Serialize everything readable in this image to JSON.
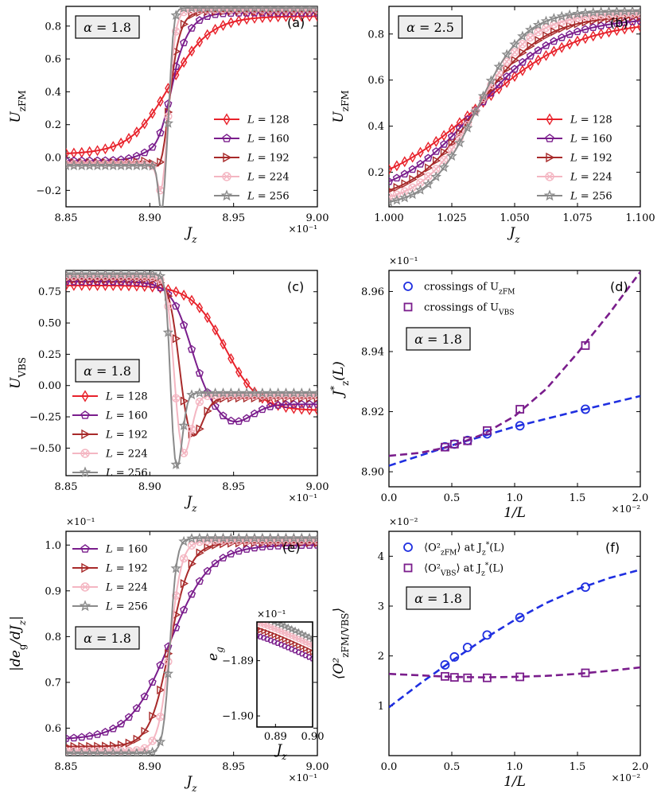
{
  "chart_data": [
    {
      "id": "a",
      "type": "line",
      "panel_label": "(a)",
      "badge": {
        "symbol": "α",
        "value": "1.8"
      },
      "xlabel": "J",
      "xlabel_sub": "z",
      "ylabel": "U",
      "ylabel_sub": "zFM",
      "x_multiplier": "×10⁻¹",
      "xlim": [
        8.85,
        9.0
      ],
      "ylim": [
        -0.3,
        0.92
      ],
      "xticks": [
        8.85,
        8.9,
        8.95,
        9.0
      ],
      "xtick_labels": [
        "8.85",
        "8.90",
        "8.95",
        "9.00"
      ],
      "yticks": [
        -0.2,
        0.0,
        0.2,
        0.4,
        0.6,
        0.8
      ],
      "ytick_labels": [
        "−0.2",
        "0.0",
        "0.2",
        "0.4",
        "0.6",
        "0.8"
      ],
      "legend_position": "right",
      "curve_kind": "step_up",
      "curve_params": {
        "x0": 8.912,
        "low": [
          0.02,
          -0.02,
          -0.03,
          -0.04,
          -0.05
        ],
        "high": [
          0.86,
          0.88,
          0.89,
          0.9,
          0.91
        ],
        "w": [
          0.012,
          0.006,
          0.0035,
          0.002,
          0.0012
        ],
        "dip": [
          0.0,
          0.08,
          0.15,
          0.22,
          0.3
        ],
        "dipx": 8.907
      },
      "series": [
        {
          "name": "L = 128",
          "L": "128",
          "color": "#e8222b",
          "marker": "diamond"
        },
        {
          "name": "L = 160",
          "L": "160",
          "color": "#7a1d8c",
          "marker": "pentagon"
        },
        {
          "name": "L = 192",
          "L": "192",
          "color": "#a82a2a",
          "marker": "triangle-right"
        },
        {
          "name": "L = 224",
          "L": "224",
          "color": "#f4b6c2",
          "marker": "crosscircle"
        },
        {
          "name": "L = 256",
          "L": "256",
          "color": "#8a8a8a",
          "marker": "star"
        }
      ]
    },
    {
      "id": "b",
      "type": "line",
      "panel_label": "(b)",
      "badge": {
        "symbol": "α",
        "value": "2.5"
      },
      "xlabel": "J",
      "xlabel_sub": "z",
      "ylabel": "U",
      "ylabel_sub": "zFM",
      "x_multiplier": "",
      "xlim": [
        1.0,
        1.1
      ],
      "ylim": [
        0.05,
        0.92
      ],
      "xticks": [
        1.0,
        1.025,
        1.05,
        1.075,
        1.1
      ],
      "xtick_labels": [
        "1.000",
        "1.025",
        "1.050",
        "1.075",
        "1.100"
      ],
      "yticks": [
        0.2,
        0.4,
        0.6,
        0.8
      ],
      "ytick_labels": [
        "0.2",
        "0.4",
        "0.6",
        "0.8"
      ],
      "legend_position": "right",
      "curve_kind": "sigmoid",
      "curve_params": {
        "x0": 1.035,
        "low": [
          0.1,
          0.08,
          0.07,
          0.06,
          0.05
        ],
        "high": [
          0.86,
          0.87,
          0.88,
          0.89,
          0.9
        ],
        "w": [
          0.02,
          0.016,
          0.013,
          0.011,
          0.0095
        ]
      },
      "series": [
        {
          "name": "L = 128",
          "L": "128",
          "color": "#e8222b",
          "marker": "diamond"
        },
        {
          "name": "L = 160",
          "L": "160",
          "color": "#7a1d8c",
          "marker": "pentagon"
        },
        {
          "name": "L = 192",
          "L": "192",
          "color": "#a82a2a",
          "marker": "triangle-right"
        },
        {
          "name": "L = 224",
          "L": "224",
          "color": "#f4b6c2",
          "marker": "crosscircle"
        },
        {
          "name": "L = 256",
          "L": "256",
          "color": "#8a8a8a",
          "marker": "star"
        }
      ]
    },
    {
      "id": "c",
      "type": "line",
      "panel_label": "(c)",
      "badge": {
        "symbol": "α",
        "value": "1.8"
      },
      "xlabel": "J",
      "xlabel_sub": "z",
      "ylabel": "U",
      "ylabel_sub": "VBS",
      "x_multiplier": "×10⁻¹",
      "xlim": [
        8.85,
        9.0
      ],
      "ylim": [
        -0.72,
        0.92
      ],
      "xticks": [
        8.85,
        8.9,
        8.95,
        9.0
      ],
      "xtick_labels": [
        "8.85",
        "8.90",
        "8.95",
        "9.00"
      ],
      "yticks": [
        -0.5,
        -0.25,
        0.0,
        0.25,
        0.5,
        0.75
      ],
      "ytick_labels": [
        "−0.50",
        "−0.25",
        "0.00",
        "0.25",
        "0.50",
        "0.75"
      ],
      "legend_position": "lower-left",
      "curve_kind": "step_down",
      "curve_params": {
        "x0": 8.935,
        "high": [
          0.8,
          0.83,
          0.85,
          0.87,
          0.89
        ],
        "low": [
          -0.2,
          -0.15,
          -0.1,
          -0.08,
          -0.06
        ],
        "w": [
          0.01,
          0.006,
          0.003,
          0.002,
          0.0012
        ],
        "x0s": [
          8.945,
          8.924,
          8.917,
          8.914,
          8.912
        ],
        "dip": [
          0.0,
          0.15,
          0.35,
          0.5,
          0.62
        ],
        "dipx": [
          8.96,
          8.95,
          8.925,
          8.92,
          8.916
        ]
      },
      "series": [
        {
          "name": "L = 128",
          "L": "128",
          "color": "#e8222b",
          "marker": "diamond"
        },
        {
          "name": "L = 160",
          "L": "160",
          "color": "#7a1d8c",
          "marker": "pentagon"
        },
        {
          "name": "L = 192",
          "L": "192",
          "color": "#a82a2a",
          "marker": "triangle-right"
        },
        {
          "name": "L = 224",
          "L": "224",
          "color": "#f4b6c2",
          "marker": "crosscircle"
        },
        {
          "name": "L = 256",
          "L": "256",
          "color": "#8a8a8a",
          "marker": "star"
        }
      ]
    },
    {
      "id": "d",
      "type": "scatter",
      "panel_label": "(d)",
      "badge": {
        "symbol": "α",
        "value": "1.8"
      },
      "xlabel": "1/L",
      "ylabel": "J",
      "ylabel_sub": "z",
      "ylabel_post": "(L)",
      "x_multiplier": "×10⁻²",
      "y_multiplier": "×10⁻¹",
      "xlim": [
        0.0,
        2.0
      ],
      "ylim": [
        8.895,
        8.967
      ],
      "xticks": [
        0.0,
        0.5,
        1.0,
        1.5,
        2.0
      ],
      "xtick_labels": [
        "0.0",
        "0.5",
        "1.0",
        "1.5",
        "2.0"
      ],
      "yticks": [
        8.9,
        8.92,
        8.94,
        8.96
      ],
      "ytick_labels": [
        "8.90",
        "8.92",
        "8.94",
        "8.96"
      ],
      "legend_position": "top-left",
      "series": [
        {
          "name": "crossings of U_zFM",
          "legend_text": "crossings of U",
          "legend_sub": "zFM",
          "color": "#1f2fe0",
          "marker": "circle",
          "x": [
            0.446,
            0.521,
            0.625,
            0.781,
            1.042,
            1.563
          ],
          "y": [
            8.9083,
            8.9092,
            8.9104,
            8.9126,
            8.9153,
            8.9208
          ],
          "fit": {
            "x": [
              0.0,
              0.5,
              1.0,
              1.5,
              2.0
            ],
            "y": [
              8.902,
              8.9088,
              8.915,
              8.9202,
              8.9252
            ]
          }
        },
        {
          "name": "crossings of U_VBS",
          "legend_text": "crossings of U",
          "legend_sub": "VBS",
          "color": "#7a1d8c",
          "marker": "square",
          "x": [
            0.446,
            0.521,
            0.625,
            0.781,
            1.042,
            1.563
          ],
          "y": [
            8.9082,
            8.9092,
            8.9103,
            8.9137,
            8.9208,
            8.942
          ],
          "fit": {
            "x": [
              0.0,
              0.25,
              0.5,
              0.75,
              1.0,
              1.25,
              1.5,
              1.75,
              2.0
            ],
            "y": [
              8.9053,
              8.9063,
              8.9085,
              8.9125,
              8.9185,
              8.9275,
              8.9395,
              8.9525,
              8.9665
            ]
          }
        }
      ]
    },
    {
      "id": "e",
      "type": "line",
      "panel_label": "(e)",
      "badge": {
        "symbol": "α",
        "value": "1.8"
      },
      "xlabel": "J",
      "xlabel_sub": "z",
      "ylabel": "|de",
      "ylabel_sub": "g",
      "ylabel_post": "/dJ",
      "x_multiplier": "×10⁻¹",
      "y_multiplier": "×10⁻¹",
      "xlim": [
        8.85,
        9.0
      ],
      "ylim": [
        0.54,
        1.03
      ],
      "xticks": [
        8.85,
        8.9,
        8.95,
        9.0
      ],
      "xtick_labels": [
        "8.85",
        "8.90",
        "8.95",
        "9.00"
      ],
      "yticks": [
        0.6,
        0.7,
        0.8,
        0.9,
        1.0
      ],
      "ytick_labels": [
        "0.6",
        "0.7",
        "0.8",
        "0.9",
        "1.0"
      ],
      "legend_position": "top-left",
      "curve_kind": "step_up",
      "curve_params": {
        "x0": 8.912,
        "low": [
          0.575,
          0.56,
          0.55,
          0.545
        ],
        "high": [
          1.0,
          1.005,
          1.01,
          1.015
        ],
        "w": [
          0.012,
          0.006,
          0.0035,
          0.002
        ],
        "dip": [
          0,
          0,
          0,
          0
        ],
        "dipx": 8.9
      },
      "series": [
        {
          "name": "L = 160",
          "L": "160",
          "color": "#7a1d8c",
          "marker": "pentagon"
        },
        {
          "name": "L = 192",
          "L": "192",
          "color": "#a82a2a",
          "marker": "triangle-right"
        },
        {
          "name": "L = 224",
          "L": "224",
          "color": "#f4b6c2",
          "marker": "crosscircle"
        },
        {
          "name": "L = 256",
          "L": "256",
          "color": "#8a8a8a",
          "marker": "star"
        }
      ],
      "inset": {
        "xlabel": "J",
        "xlabel_sub": "z",
        "ylabel": "e",
        "ylabel_sub": "g",
        "y_multiplier": "×10⁻¹",
        "xlim": [
          0.885,
          0.9
        ],
        "ylim": [
          -1.902,
          -1.883
        ],
        "xticks": [
          0.89,
          0.9
        ],
        "xtick_labels": [
          "0.89",
          "0.90"
        ],
        "yticks": [
          -1.89,
          -1.9
        ],
        "ytick_labels": [
          "−1.89",
          "−1.90"
        ]
      }
    },
    {
      "id": "f",
      "type": "scatter",
      "panel_label": "(f)",
      "badge": {
        "symbol": "α",
        "value": "1.8"
      },
      "xlabel": "1/L",
      "ylabel": "⟨O²",
      "ylabel_sub": "zFM/VBS",
      "ylabel_post": "⟩",
      "x_multiplier": "×10⁻²",
      "y_multiplier": "×10⁻²",
      "xlim": [
        0.0,
        2.0
      ],
      "ylim": [
        0.0,
        4.5
      ],
      "xticks": [
        0.0,
        0.5,
        1.0,
        1.5,
        2.0
      ],
      "xtick_labels": [
        "0.0",
        "0.5",
        "1.0",
        "1.5",
        "2.0"
      ],
      "yticks": [
        1,
        2,
        3,
        4
      ],
      "ytick_labels": [
        "1",
        "2",
        "3",
        "4"
      ],
      "legend_position": "top-left",
      "series": [
        {
          "name": "⟨O²_zFM⟩ at J*_z(L)",
          "legend_text": "⟨O²",
          "legend_sub": "zFM",
          "legend_post": "⟩ at J",
          "legend_tail": "(L)",
          "color": "#1f2fe0",
          "marker": "circle",
          "x": [
            0.446,
            0.521,
            0.625,
            0.781,
            1.042,
            1.563
          ],
          "y": [
            1.82,
            1.98,
            2.17,
            2.42,
            2.77,
            3.38
          ],
          "fit": {
            "x": [
              0.0,
              0.25,
              0.5,
              0.75,
              1.0,
              1.25,
              1.5,
              1.75,
              2.0
            ],
            "y": [
              0.97,
              1.45,
              1.9,
              2.33,
              2.72,
              3.06,
              3.34,
              3.56,
              3.73
            ]
          }
        },
        {
          "name": "⟨O²_VBS⟩ at J*_z(L)",
          "legend_text": "⟨O²",
          "legend_sub": "VBS",
          "legend_post": "⟩ at J",
          "legend_tail": "(L)",
          "color": "#7a1d8c",
          "marker": "square",
          "x": [
            0.446,
            0.521,
            0.625,
            0.781,
            1.042,
            1.563
          ],
          "y": [
            1.59,
            1.57,
            1.56,
            1.56,
            1.58,
            1.66
          ],
          "fit": {
            "x": [
              0.0,
              0.25,
              0.5,
              0.75,
              1.0,
              1.25,
              1.5,
              1.75,
              2.0
            ],
            "y": [
              1.64,
              1.61,
              1.58,
              1.57,
              1.58,
              1.6,
              1.64,
              1.7,
              1.77
            ]
          }
        }
      ]
    }
  ]
}
